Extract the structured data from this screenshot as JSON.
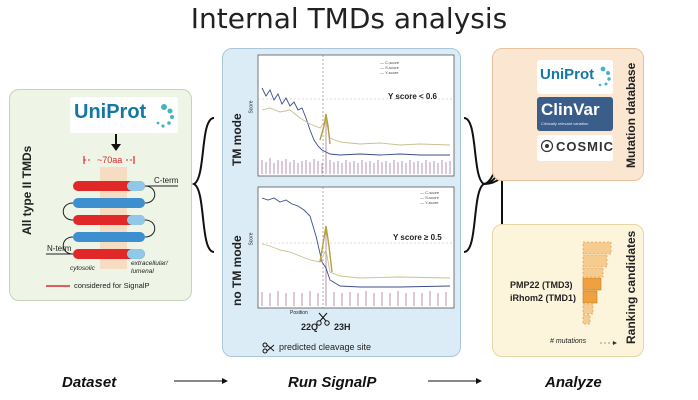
{
  "title": "Internal TMDs analysis",
  "dataset": {
    "label": "All type II TMDs",
    "logo": "UniProt",
    "span": "~70aa",
    "c_term": "C-term",
    "n_term": "N-term",
    "cytosolic": "cytosolic",
    "extracellular": "extracellular/",
    "lumenal": "lumenal",
    "legend": "considered for SignalP"
  },
  "signalp": {
    "tm_mode": "TM mode",
    "no_tm_mode": "no TM mode",
    "threshold_top": "Y score < 0.6",
    "threshold_bottom": "Y score ≥ 0.5",
    "score_axis": "Score",
    "position_axis": "Position",
    "legend": [
      "C-score",
      "S-score",
      "Y-score"
    ],
    "site_left": "22Q",
    "site_right": "23H",
    "cleavage_label": "predicted cleavage site"
  },
  "mutation": {
    "label": "Mutation database",
    "logos": [
      "UniProt",
      "ClinVar",
      "COSMIC"
    ],
    "clinvar_sub": "Clinically relevant variation"
  },
  "ranking": {
    "label": "Ranking candidates",
    "items": [
      "PMP22 (TMD3)",
      "iRhom2 (TMD1)"
    ],
    "axis": "# mutations"
  },
  "steps": [
    "Dataset",
    "Run SignalP",
    "Analyze"
  ],
  "colors": {
    "c_score": "#8a4a7a",
    "s_score": "#3b4e8a",
    "y_score": "#b7a03a",
    "orange": "#f0a040",
    "red": "#e02828",
    "blue": "#3d8fd0"
  }
}
